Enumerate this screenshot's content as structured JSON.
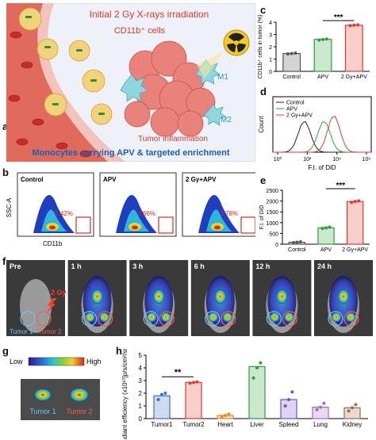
{
  "panels": {
    "a": {
      "label": "a",
      "title": "Initial 2 Gy X-rays irradiation",
      "cells_label": "CD11b⁺ cells",
      "m1": "M1",
      "m2": "M2",
      "inflammation": "Tumor inflammation",
      "caption": "Monocytes carrying APV & targeted enrichment"
    },
    "b": {
      "label": "b",
      "yaxis": "SSC-A",
      "xaxis": "CD11b",
      "plots": [
        {
          "name": "Control",
          "pct": "1.42%"
        },
        {
          "name": "APV",
          "pct": "2.66%"
        },
        {
          "name": "2 Gy+APV",
          "pct": "3.78%"
        }
      ]
    },
    "c": {
      "label": "c",
      "sig": "***"
    },
    "d": {
      "label": "d"
    },
    "e": {
      "label": "e",
      "sig": "***"
    },
    "f": {
      "label": "f",
      "times": [
        "Pre",
        "1 h",
        "3 h",
        "6 h",
        "12 h",
        "24 h"
      ],
      "dose": "2 Gy",
      "tumor1": "Tumor 1",
      "tumor2": "Tumor 2"
    },
    "g": {
      "label": "g",
      "low": "Low",
      "high": "High",
      "tumor1": "Tumor 1",
      "tumor2": "Tumor 2"
    },
    "h": {
      "label": "h",
      "sig": "**"
    }
  },
  "chart_data": [
    {
      "id": "c",
      "type": "bar",
      "ylabel": "CD11b⁺ cells in tumor (%)",
      "categories": [
        "Control",
        "APV",
        "2 Gy+APV"
      ],
      "values": [
        1.45,
        2.6,
        3.75
      ],
      "points": [
        [
          1.42,
          1.45,
          1.48
        ],
        [
          2.55,
          2.6,
          2.63
        ],
        [
          3.72,
          3.76,
          3.78
        ]
      ],
      "ylim": [
        0,
        4
      ],
      "yticks": [
        0,
        1,
        2,
        3,
        4
      ],
      "colors": [
        "#555555",
        "#2e9e3a",
        "#e03a2a"
      ]
    },
    {
      "id": "d",
      "type": "line",
      "ylabel": "Count",
      "xlabel": "F.I. of DiD",
      "xticks": [
        "10⁰",
        "10²",
        "10⁴",
        "10⁶"
      ],
      "legend": [
        "Control",
        "APV",
        "2 Gy+APV"
      ],
      "legend_position": "top-left",
      "colors": [
        "#222222",
        "#2e9e3a",
        "#e03a2a"
      ]
    },
    {
      "id": "e",
      "type": "bar",
      "ylabel": "F.I. of DiD",
      "categories": [
        "Control",
        "APV",
        "2 Gy+APV"
      ],
      "values": [
        90,
        760,
        1980
      ],
      "points": [
        [
          70,
          90,
          110
        ],
        [
          730,
          760,
          790
        ],
        [
          1940,
          1980,
          2010
        ]
      ],
      "ylim": [
        0,
        2500
      ],
      "yticks": [
        0,
        500,
        1000,
        1500,
        2000,
        2500
      ],
      "colors": [
        "#555555",
        "#2e9e3a",
        "#e03a2a"
      ]
    },
    {
      "id": "h",
      "type": "bar",
      "ylabel": "Avg radiant efficiency (x10¹⁰[p/s/cm²/sr]/[μW/cm²])",
      "categories": [
        "Tumor1",
        "Tumor2",
        "Heart",
        "Liver",
        "Spleed",
        "Lung",
        "Kidney"
      ],
      "values": [
        1.8,
        2.85,
        0.25,
        4.1,
        1.5,
        0.9,
        0.85
      ],
      "points": [
        [
          1.5,
          1.9,
          2.0
        ],
        [
          2.8,
          2.85,
          2.9
        ],
        [
          0.15,
          0.25,
          0.35
        ],
        [
          3.2,
          4.0,
          4.4
        ],
        [
          1.0,
          1.5,
          2.1
        ],
        [
          0.7,
          0.9,
          1.2
        ],
        [
          0.6,
          0.85,
          1.1
        ]
      ],
      "ylim": [
        0,
        5
      ],
      "yticks": [
        0,
        1,
        2,
        3,
        4,
        5
      ],
      "colors": [
        "#3a6fc4",
        "#e03a2a",
        "#e08a2a",
        "#2e9e3a",
        "#7a4fc4",
        "#a66ac0",
        "#a06a4a"
      ]
    }
  ]
}
